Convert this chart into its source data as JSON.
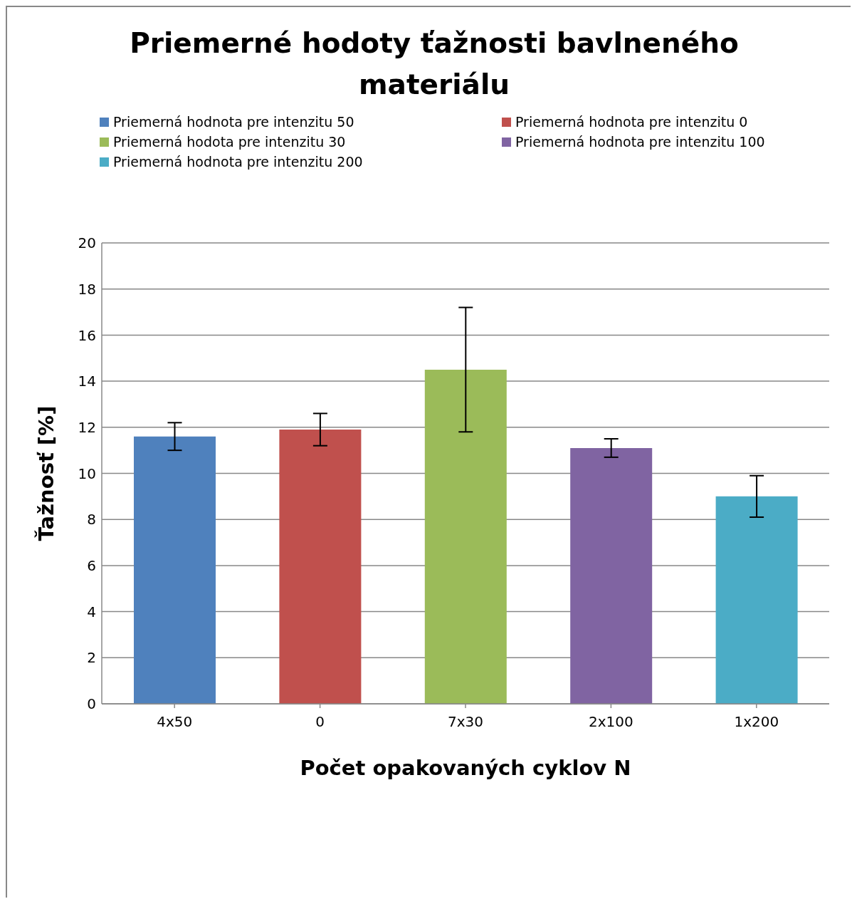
{
  "chart_data": {
    "type": "bar",
    "title": "Priemerné hodoty ťažnosti bavlneného materiálu",
    "xlabel": "Počet opakovaných cyklov N",
    "ylabel": "Ťažnosť [%]",
    "categories": [
      "4x50",
      "0",
      "7x30",
      "2x100",
      "1x200"
    ],
    "series": [
      {
        "name": "Priemerná hodnota pre intenzitu 50",
        "color": "#4f81bd",
        "values": [
          11.6,
          null,
          null,
          null,
          null
        ],
        "errors": [
          0.6,
          null,
          null,
          null,
          null
        ]
      },
      {
        "name": "Priemerná hodnota pre intenzitu 0",
        "color": "#c0504d",
        "values": [
          null,
          11.9,
          null,
          null,
          null
        ],
        "errors": [
          null,
          0.7,
          null,
          null,
          null
        ]
      },
      {
        "name": "Priemerná hodota pre intenzitu 30",
        "color": "#9bbb59",
        "values": [
          null,
          null,
          14.5,
          null,
          null
        ],
        "errors": [
          null,
          null,
          2.7,
          null,
          null
        ]
      },
      {
        "name": "Priemerná hodnota pre intenzitu 100",
        "color": "#8064a2",
        "values": [
          null,
          null,
          null,
          11.1,
          null
        ],
        "errors": [
          null,
          null,
          null,
          0.4,
          null
        ]
      },
      {
        "name": "Priemerná hodnota pre intenzitu 200",
        "color": "#4bacc6",
        "values": [
          null,
          null,
          null,
          null,
          9.0
        ],
        "errors": [
          null,
          null,
          null,
          null,
          0.9
        ]
      }
    ],
    "ylim": [
      0,
      20
    ],
    "yticks": [
      0,
      2,
      4,
      6,
      8,
      10,
      12,
      14,
      16,
      18,
      20
    ],
    "grid": "y",
    "legend": "top"
  }
}
